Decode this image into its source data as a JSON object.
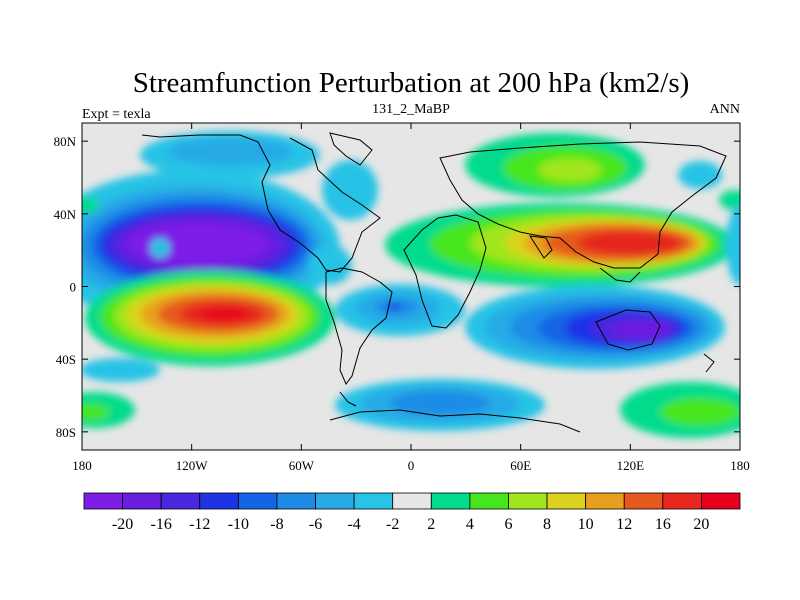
{
  "title": "Streamfunction Perturbation at 200 hPa (km2/s)",
  "left_label": "Expt = texla",
  "center_label": "131_2_MaBP",
  "right_label": "ANN",
  "map": {
    "x_ticks": [
      "180",
      "120W",
      "60W",
      "0",
      "60E",
      "120E",
      "180"
    ],
    "y_ticks": [
      "80N",
      "40N",
      "0",
      "40S",
      "80S"
    ],
    "background_color": "#e6e6e6",
    "coastline_color": "#000000"
  },
  "colorbar": {
    "labels": [
      "-20",
      "-16",
      "-12",
      "-10",
      "-8",
      "-6",
      "-4",
      "-2",
      "2",
      "4",
      "6",
      "8",
      "10",
      "12",
      "16",
      "20"
    ],
    "colors": [
      "#7d1ee6",
      "#6a1ee0",
      "#4a28e0",
      "#1e32e6",
      "#1464e6",
      "#1e8ce6",
      "#28aae6",
      "#28c3e6",
      "#e6e6e6",
      "#00dc8c",
      "#46e61e",
      "#a0e61e",
      "#dcd21e",
      "#e6a01e",
      "#e65a1e",
      "#e6281e",
      "#e6001e"
    ]
  }
}
